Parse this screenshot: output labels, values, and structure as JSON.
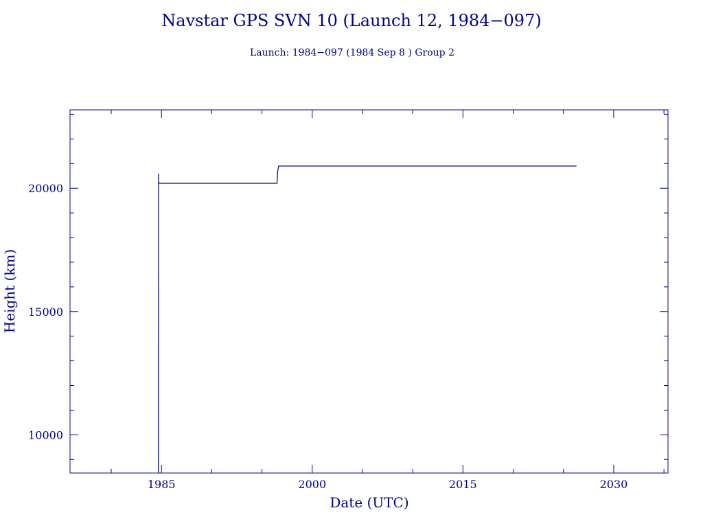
{
  "chart_data": {
    "type": "line",
    "title": "Navstar GPS SVN 10 (Launch 12, 1984−097)",
    "subtitle": "Launch: 1984−097  (1984 Sep  8 )  Group 2",
    "xlabel": "Date (UTC)",
    "ylabel": "Height (km)",
    "xlim": [
      1975.9,
      2035.4
    ],
    "ylim": [
      8450,
      23180
    ],
    "x_ticks": [
      1985,
      2000,
      2015,
      2030
    ],
    "x_tick_labels": [
      "1985",
      "2000",
      "2015",
      "2030"
    ],
    "y_ticks": [
      10000,
      15000,
      20000
    ],
    "y_tick_labels": [
      "10000",
      "15000",
      "20000"
    ],
    "grid": false,
    "series": [
      {
        "x": [
          1984.69,
          1984.71,
          1984.71,
          1984.8,
          1984.85,
          1996.5,
          1996.55,
          1996.65,
          2026.3
        ],
        "y": [
          8450,
          20600,
          20250,
          20200,
          20200,
          20200,
          20650,
          20900,
          20900
        ]
      }
    ]
  },
  "colors": {
    "ink": "#00008b",
    "background": "#ffffff"
  }
}
